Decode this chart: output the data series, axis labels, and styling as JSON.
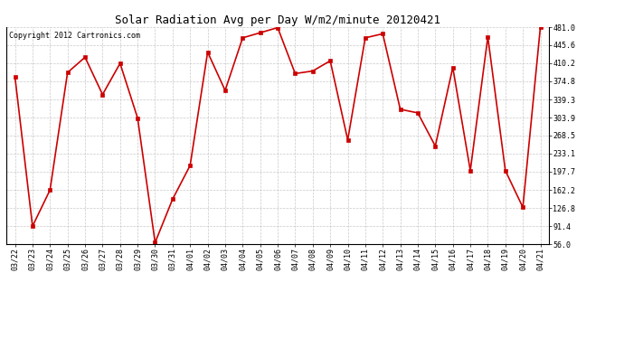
{
  "title": "Solar Radiation Avg per Day W/m2/minute 20120421",
  "copyright": "Copyright 2012 Cartronics.com",
  "labels": [
    "03/22",
    "03/23",
    "03/24",
    "03/25",
    "03/26",
    "03/27",
    "03/28",
    "03/29",
    "03/30",
    "03/31",
    "04/01",
    "04/02",
    "04/03",
    "04/04",
    "04/05",
    "04/06",
    "04/07",
    "04/08",
    "04/09",
    "04/10",
    "04/11",
    "04/12",
    "04/13",
    "04/14",
    "04/15",
    "04/16",
    "04/17",
    "04/18",
    "04/19",
    "04/20",
    "04/21"
  ],
  "values": [
    383,
    91,
    162,
    392,
    422,
    349,
    410,
    303,
    59,
    144,
    210,
    432,
    357,
    460,
    470,
    480,
    390,
    395,
    415,
    260,
    460,
    468,
    320,
    313,
    248,
    402,
    200,
    462,
    200,
    128,
    481
  ],
  "ylim_min": 56.0,
  "ylim_max": 481.0,
  "yticks": [
    56.0,
    91.4,
    126.8,
    162.2,
    197.7,
    233.1,
    268.5,
    303.9,
    339.3,
    374.8,
    410.2,
    445.6,
    481.0
  ],
  "line_color": "#cc0000",
  "marker_color": "#cc0000",
  "bg_color": "#ffffff",
  "grid_color": "#bbbbbb",
  "title_fontsize": 9,
  "copyright_fontsize": 6,
  "tick_fontsize": 6
}
